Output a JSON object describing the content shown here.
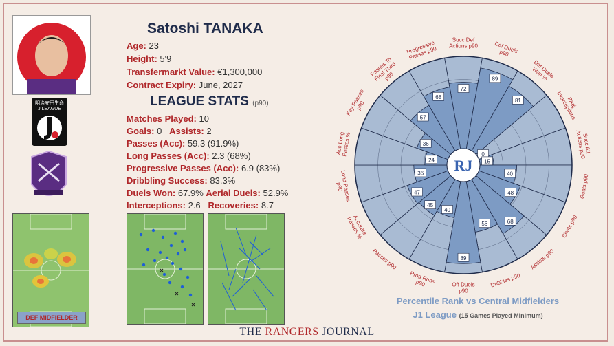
{
  "player": {
    "name": "Satoshi TANAKA",
    "age_label": "Age:",
    "age": "23",
    "height_label": "Height:",
    "height": "5'9",
    "value_label": "Transfermarkt Value:",
    "value": "€1,300,000",
    "contract_label": "Contract Expiry:",
    "contract": "June, 2027",
    "position": "DEF MIDFIELDER"
  },
  "league_stats": {
    "title": "LEAGUE STATS",
    "subtitle": "(p90)",
    "matches_label": "Matches Played:",
    "matches": "10",
    "goals_label": "Goals:",
    "goals": "0",
    "assists_label": "Assists:",
    "assists": "2",
    "passes_label": "Passes (Acc):",
    "passes": "59.3 (91.9%)",
    "long_passes_label": "Long Passes (Acc):",
    "long_passes": "2.3 (68%)",
    "prog_passes_label": "Progressive Passes (Acc):",
    "prog_passes": "6.9 (83%)",
    "dribbling_label": "Dribbling Success:",
    "dribbling": "83.3%",
    "duels_label": "Duels Won:",
    "duels": "67.9%",
    "aerial_label": "Aerial Duels:",
    "aerial": "52.9%",
    "interceptions_label": "Interceptions:",
    "interceptions": "2.6",
    "recoveries_label": "Recoveries:",
    "recoveries": "8.7"
  },
  "badges": {
    "jleague_text": "明治安田生命 J.LEAGUE",
    "club_text": "SANFRECCE HIROSHIMA",
    "center_logo": "RJ"
  },
  "footer": {
    "part1": "THE ",
    "part2": "RANGERS",
    "part3": " JOURNAL"
  },
  "captions": {
    "line1": "Percentile Rank vs Central Midfielders",
    "line2": "J1 League",
    "line2_small": "(15 Games Played Minimum)"
  },
  "colors": {
    "accent": "#b0282b",
    "navy": "#1f2b4a",
    "bar": "#7d9bc4",
    "pitch": "#7fb765"
  },
  "chart_data": {
    "type": "polar-bar",
    "categories": [
      "Succ Def Actions p90",
      "Def Duels p90",
      "Def Duels Won %",
      "PAdj Interceptions",
      "Succ Att Actions p90",
      "Goals p90",
      "Shots p90",
      "Assists p90",
      "Dribbles p90",
      "Off Duels p90",
      "Prog Runs p90",
      "Passes p90",
      "Accurate Passes %",
      "Long Passes p90",
      "Acc Long Passes %",
      "Key Passes p90",
      "Passes To Final Third p90",
      "Progressive Passes p90"
    ],
    "values": [
      72,
      89,
      81,
      0,
      15,
      40,
      48,
      68,
      56,
      89,
      40,
      45,
      47,
      36,
      24,
      36,
      57,
      68
    ],
    "rlim": [
      0,
      100
    ]
  }
}
